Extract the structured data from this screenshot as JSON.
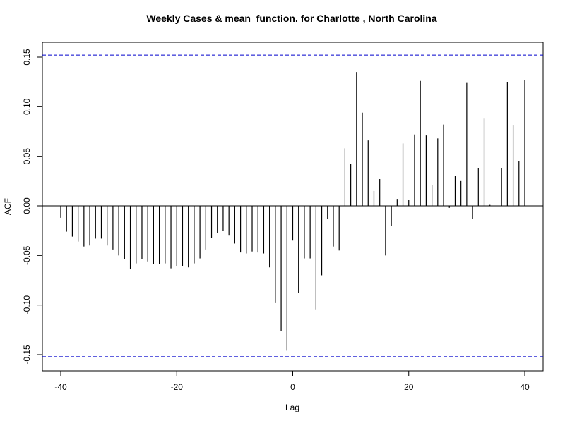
{
  "chart_data": {
    "type": "bar",
    "title": "Weekly Cases & mean_function. for Charlotte , North Carolina",
    "xlabel": "Lag",
    "ylabel": "ACF",
    "xlim": [
      -40,
      40
    ],
    "ylim": [
      -0.15,
      0.15
    ],
    "x_ticks": [
      -40,
      -20,
      0,
      20,
      40
    ],
    "x_tick_labels": [
      "-40",
      "-20",
      "0",
      "20",
      "40"
    ],
    "y_ticks": [
      -0.15,
      -0.1,
      -0.05,
      0.0,
      0.05,
      0.1,
      0.15
    ],
    "y_tick_labels": [
      "-0.15",
      "-0.10",
      "-0.05",
      "0.00",
      "0.05",
      "0.10",
      "0.15"
    ],
    "confidence_bound": 0.152,
    "confidence_color": "#0000cc",
    "bar_color": "#000000",
    "grid": false,
    "series": [
      {
        "lags": [
          -40,
          -39,
          -38,
          -37,
          -36,
          -35,
          -34,
          -33,
          -32,
          -31,
          -30,
          -29,
          -28,
          -27,
          -26,
          -25,
          -24,
          -23,
          -22,
          -21,
          -20,
          -19,
          -18,
          -17,
          -16,
          -15,
          -14,
          -13,
          -12,
          -11,
          -10,
          -9,
          -8,
          -7,
          -6,
          -5,
          -4,
          -3,
          -2,
          -1,
          0,
          1,
          2,
          3,
          4,
          5,
          6,
          7,
          8,
          9,
          10,
          11,
          12,
          13,
          14,
          15,
          16,
          17,
          18,
          19,
          20,
          21,
          22,
          23,
          24,
          25,
          26,
          27,
          28,
          29,
          30,
          31,
          32,
          33,
          34,
          35,
          36,
          37,
          38,
          39,
          40
        ],
        "values": [
          -0.012,
          -0.026,
          -0.031,
          -0.036,
          -0.041,
          -0.04,
          -0.033,
          -0.033,
          -0.04,
          -0.044,
          -0.05,
          -0.054,
          -0.064,
          -0.058,
          -0.054,
          -0.056,
          -0.059,
          -0.059,
          -0.058,
          -0.063,
          -0.061,
          -0.061,
          -0.062,
          -0.058,
          -0.053,
          -0.044,
          -0.032,
          -0.027,
          -0.025,
          -0.03,
          -0.038,
          -0.047,
          -0.048,
          -0.046,
          -0.047,
          -0.048,
          -0.062,
          -0.098,
          -0.126,
          -0.146,
          -0.035,
          -0.088,
          -0.053,
          -0.053,
          -0.105,
          -0.07,
          -0.013,
          -0.041,
          -0.045,
          0.058,
          0.042,
          0.135,
          0.094,
          0.066,
          0.015,
          0.027,
          -0.05,
          -0.02,
          0.007,
          0.063,
          0.006,
          0.072,
          0.126,
          0.071,
          0.021,
          0.068,
          0.082,
          -0.002,
          0.03,
          0.025,
          0.124,
          -0.013,
          0.038,
          0.088,
          0.001,
          0.0,
          0.038,
          0.125,
          0.081,
          0.045,
          0.127
        ]
      }
    ]
  }
}
